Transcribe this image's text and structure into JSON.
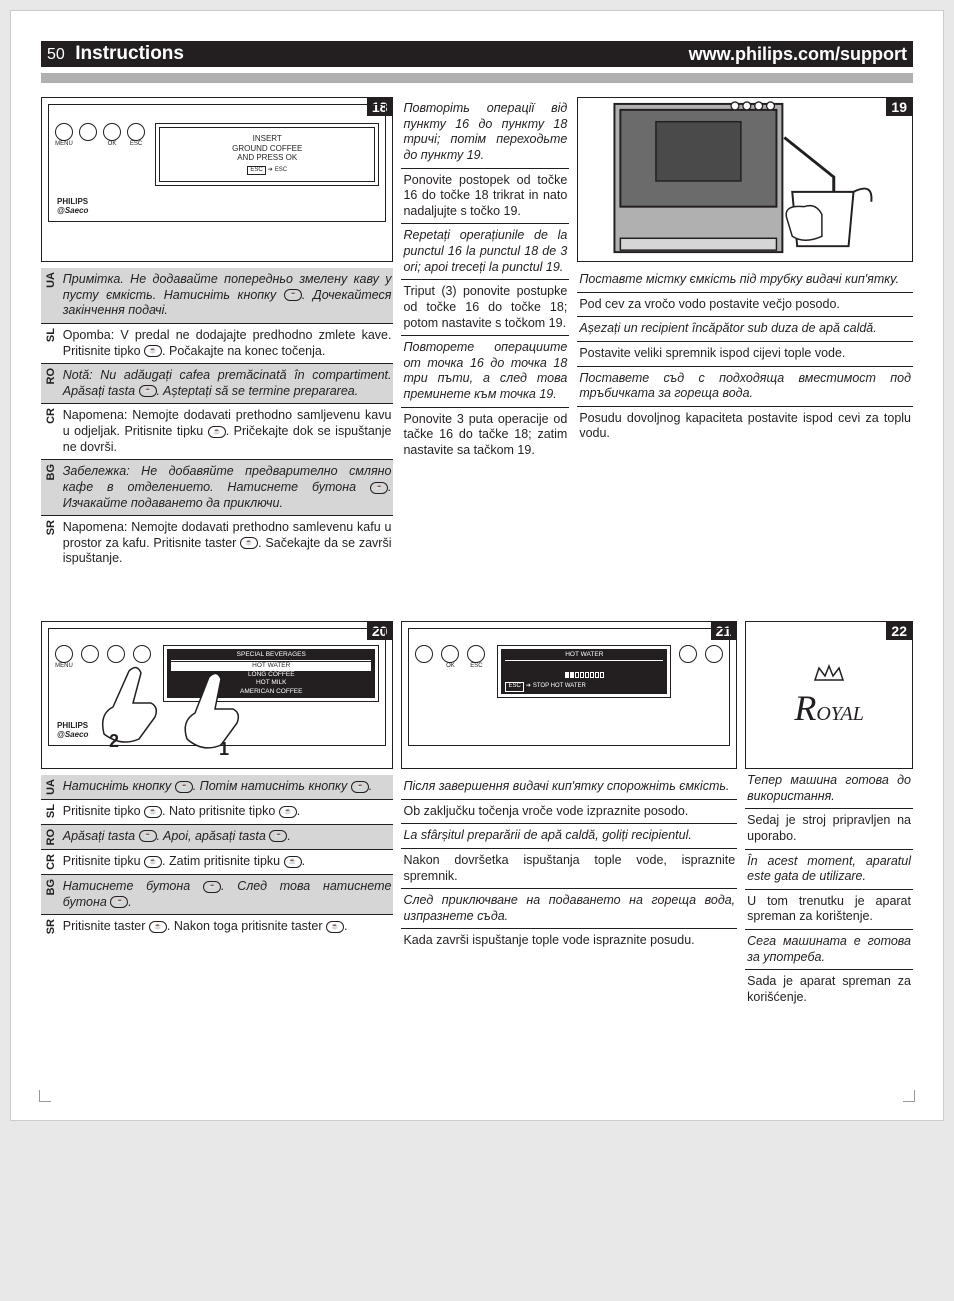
{
  "header": {
    "page_no": "50",
    "title": "Instructions",
    "url": "www.philips.com/support"
  },
  "panel18": {
    "num": "18",
    "screen_line1": "INSERT",
    "screen_line2": "GROUND COFFEE",
    "screen_line3": "AND PRESS OK",
    "esc_label": "ESC",
    "esc_hint": "ESC",
    "btn_menu": "MENU",
    "btn_ok": "OK",
    "btn_esc": "ESC",
    "brand1": "PHILIPS",
    "brand2": "Saeco"
  },
  "panel19": {
    "num": "19"
  },
  "panel20": {
    "num": "20",
    "menu_header": "SPECIAL BEVERAGES",
    "menu_items": [
      "HOT WATER",
      "LONG COFFEE",
      "HOT MILK",
      "AMERICAN COFFEE"
    ],
    "brand1": "PHILIPS",
    "brand2": "Saeco",
    "btn_menu": "MENU",
    "hand_tag1": "1",
    "hand_tag2": "2"
  },
  "panel21": {
    "num": "21",
    "menu_header": "HOT WATER",
    "esc_label": "ESC",
    "esc_hint": "STOP HOT WATER",
    "btn_ok": "OK",
    "btn_esc": "ESC"
  },
  "panel22": {
    "num": "22",
    "logo": "Royal"
  },
  "col18_langs": [
    {
      "code": "UA",
      "italic": true,
      "text": "Примітка. Не додавайте попередньо змелену каву у пусту ємкість. Натисніть кнопку {icon}. Дочекайтеся закінчення подачі."
    },
    {
      "code": "SL",
      "italic": false,
      "text": "Opomba: V predal ne dodajajte predhodno zmlete kave. Pritisnite tipko {icon}. Počakajte na konec točenja."
    },
    {
      "code": "RO",
      "italic": true,
      "text": "Notă: Nu adăugați cafea premăcinată în compartiment. Apăsați tasta {icon}. Așteptați să se termine prepararea."
    },
    {
      "code": "CR",
      "italic": false,
      "text": "Napomena: Nemojte dodavati prethodno samljevenu kavu u odjeljak. Pritisnite tipku {icon}. Pričekajte dok se ispuštanje ne dovrši."
    },
    {
      "code": "BG",
      "italic": true,
      "text": "Забележка: Не добавяйте предварително смляно кафе в отделението. Натиснете бутона {icon}. Изчакайте подаването да приключи."
    },
    {
      "code": "SR",
      "italic": false,
      "text": "Napomena: Nemojte dodavati prethodno samlevenu kafu u prostor za kafu. Pritisnite taster {icon}. Sačekajte da se završi ispuštanje."
    }
  ],
  "col_mid_top": [
    {
      "italic": true,
      "text": "Повторіть операції від пункту 16 до пункту 18 тричі; потім переходьте до пункту 19."
    },
    {
      "italic": false,
      "text": "Ponovite postopek od točke 16 do točke 18 trikrat in nato nadaljujte s točko 19."
    },
    {
      "italic": true,
      "text": "Repetați operațiunile de la punctul 16 la punctul 18 de 3 ori; apoi treceți la punctul 19."
    },
    {
      "italic": false,
      "text": "Triput (3) ponovite postupke od točke 16 do točke 18; potom nastavite s točkom 19."
    },
    {
      "italic": true,
      "text": "Повторете операциите от точка 16 до точка 18 три пъти, а след това преминете към точка 19."
    },
    {
      "italic": false,
      "text": "Ponovite 3 puta operacije od tačke 16 do tačke 18; zatim nastavite sa tačkom 19."
    }
  ],
  "col19_langs": [
    {
      "italic": true,
      "text": "Поставте містку ємкість під трубку видачі кип'ятку."
    },
    {
      "italic": false,
      "text": "Pod cev za vročo vodo postavite večjo posodo."
    },
    {
      "italic": true,
      "text": "Așezați un recipient încăpător sub duza de apă caldă."
    },
    {
      "italic": false,
      "text": "Postavite veliki spremnik ispod cijevi tople vode."
    },
    {
      "italic": true,
      "text": "Поставете съд с подходяща вместимост под тръбичката за гореща вода."
    },
    {
      "italic": false,
      "text": "Posudu dovoljnog kapaciteta postavite ispod cevi za toplu vodu."
    }
  ],
  "col20_langs": [
    {
      "code": "UA",
      "italic": true,
      "text": "Натисніть кнопку {icon}. Потім натисніть кнопку {icon}."
    },
    {
      "code": "SL",
      "italic": false,
      "text": "Pritisnite tipko {icon}. Nato pritisnite tipko {icon}."
    },
    {
      "code": "RO",
      "italic": true,
      "text": "Apăsați tasta {icon}. Apoi, apăsați tasta {icon}."
    },
    {
      "code": "CR",
      "italic": false,
      "text": "Pritisnite tipku {icon}. Zatim pritisnite tipku {icon}."
    },
    {
      "code": "BG",
      "italic": true,
      "text": "Натиснете бутона {icon}. След това натиснете бутона {icon}."
    },
    {
      "code": "SR",
      "italic": false,
      "text": "Pritisnite taster {icon}. Nakon toga pritisnite taster {icon}."
    }
  ],
  "col21_langs": [
    {
      "italic": true,
      "text": "Після завершення видачі кип'ятку спорожніть ємкість."
    },
    {
      "italic": false,
      "text": "Ob zaključku točenja vroče vode izpraznite posodo."
    },
    {
      "italic": true,
      "text": "La sfârșitul preparării de apă caldă, goliți recipientul."
    },
    {
      "italic": false,
      "text": "Nakon dovršetka ispuštanja tople vode, ispraznite spremnik."
    },
    {
      "italic": true,
      "text": "След приключване на подаването на гореща вода, изпразнете съда."
    },
    {
      "italic": false,
      "text": "Kada završi ispuštanje tople vode ispraznite posudu."
    }
  ],
  "col22_langs": [
    {
      "italic": true,
      "text": "Тепер машина готова до використання."
    },
    {
      "italic": false,
      "text": "Sedaj je stroj pripravljen na uporabo."
    },
    {
      "italic": true,
      "text": "În acest moment, aparatul este gata de utilizare."
    },
    {
      "italic": false,
      "text": "U tom trenutku je aparat spreman za korištenje."
    },
    {
      "italic": true,
      "text": "Сега машината е готова за употреба."
    },
    {
      "italic": false,
      "text": "Sada je aparat spreman za korišćenje."
    }
  ],
  "style": {
    "header_bg": "#231f20",
    "shade_bg": "#d6d6d6",
    "border": "#231f20",
    "body_bg": "#ffffff",
    "font_body": 12.5,
    "font_header": 19
  }
}
